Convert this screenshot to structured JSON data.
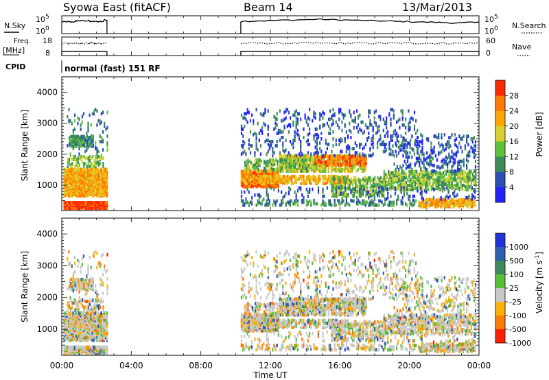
{
  "header": {
    "station": "Syowa East (fitACF)",
    "beam": "Beam 14",
    "date": "13/Mar/2013"
  },
  "chart_data": [
    {
      "type": "line",
      "panel": "noise",
      "left_label": "N.Sky",
      "right_label": "N.Search",
      "left_ticks": [
        "10^5",
        "10^0"
      ],
      "right_ticks": [
        "10^5",
        "10^0"
      ],
      "x_range_hours": [
        0,
        24
      ],
      "data_gaps_hours": [
        [
          2.6,
          10.3
        ]
      ],
      "series": [
        {
          "style": "solid",
          "values_log10": [
            3.3,
            3.6,
            3.4,
            3.8,
            3.5,
            3.2,
            3.1,
            3.0,
            3.0,
            3.1,
            3.2,
            3.3,
            3.4,
            3.5,
            3.6,
            3.7,
            3.8,
            3.9,
            4.0,
            3.9,
            3.8,
            3.7,
            3.6,
            3.5,
            3.4,
            3.3,
            3.2,
            3.1,
            3.0,
            3.1
          ]
        },
        {
          "style": "dotted",
          "values_log10": [
            0,
            0,
            0,
            0,
            0,
            0,
            0,
            0,
            0,
            0,
            0,
            0,
            0,
            0,
            0,
            0,
            0,
            0,
            0,
            0,
            0,
            0,
            0,
            0,
            0,
            0,
            0,
            0,
            0,
            0
          ]
        }
      ]
    },
    {
      "type": "line",
      "panel": "freq-nave",
      "left_label_line1": "Freq.",
      "left_label_line2": "[MHz]",
      "right_label": "Nave",
      "left_ticks": [
        "18",
        "8"
      ],
      "right_ticks": [
        "60",
        "0"
      ],
      "x_range_hours": [
        0,
        24
      ],
      "data_gaps_hours": [
        [
          2.6,
          10.3
        ]
      ],
      "series": [
        {
          "style": "solid",
          "label": "Freq",
          "value_mhz": 10.2
        },
        {
          "style": "dotted",
          "label": "Nave",
          "value": 40
        }
      ]
    },
    {
      "type": "heatmap",
      "panel": "cpid",
      "left_label": "CPID",
      "text": "normal (fast) 151 RF"
    },
    {
      "type": "heatmap",
      "panel": "power",
      "ylabel": "Slant Range [km]",
      "yticks": [
        "1000",
        "2000",
        "3000",
        "4000"
      ],
      "ylim": [
        180,
        4500
      ],
      "xlim": [
        0,
        24
      ],
      "colorbar": {
        "label": "Power [dB]",
        "ticks": [
          "4",
          "8",
          "12",
          "16",
          "20",
          "24",
          "28"
        ],
        "colors": [
          "#2222ff",
          "#2b4fb4",
          "#3a8a5a",
          "#5fc23c",
          "#d8d030",
          "#ffa500",
          "#ff7a00",
          "#ff2a00"
        ]
      }
    },
    {
      "type": "heatmap",
      "panel": "velocity",
      "ylabel": "Slant Range [km]",
      "yticks": [
        "1000",
        "2000",
        "3000",
        "4000"
      ],
      "ylim": [
        180,
        4500
      ],
      "xlim": [
        0,
        24
      ],
      "xlabel": "Time UT",
      "xticks": [
        "00:00",
        "04:00",
        "08:00",
        "12:00",
        "16:00",
        "20:00",
        "00:00"
      ],
      "colorbar": {
        "label": "Velocity [m s^-1]",
        "ticks": [
          "1000",
          "500",
          "100",
          "25",
          "-25",
          "-100",
          "-500",
          "-1000"
        ],
        "colors": [
          "#2233dd",
          "#2c5fb0",
          "#3c8a5c",
          "#55c035",
          "#c8c8c8",
          "#ffb000",
          "#ff7a00",
          "#ff2000"
        ]
      }
    }
  ]
}
